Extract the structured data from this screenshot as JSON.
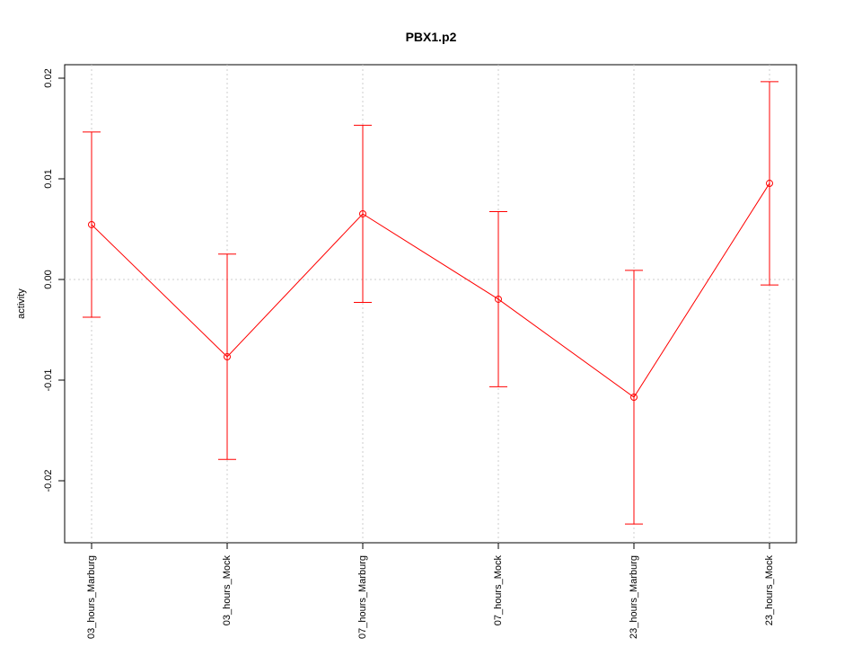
{
  "chart_data": {
    "type": "errorbar-line",
    "title": "PBX1.p2",
    "y_label": "activity",
    "categories": [
      "03_hours_Marburg",
      "03_hours_Mock",
      "07_hours_Marburg",
      "07_hours_Mock",
      "23_hours_Marburg",
      "23_hours_Mock"
    ],
    "values": [
      0.00545,
      -0.00768,
      0.00652,
      -0.00196,
      -0.0117,
      0.00955
    ],
    "errors": [
      0.0092,
      0.0102,
      0.0088,
      0.0087,
      0.0126,
      0.0101
    ],
    "color": "#ff0000",
    "ylim": [
      -0.02616,
      0.02134
    ],
    "yticks": [
      -0.02,
      -0.01,
      {
        "value": 0,
        "label": "0.00"
      },
      0.01,
      0.02
    ],
    "grid": true,
    "reference_line": 0
  }
}
